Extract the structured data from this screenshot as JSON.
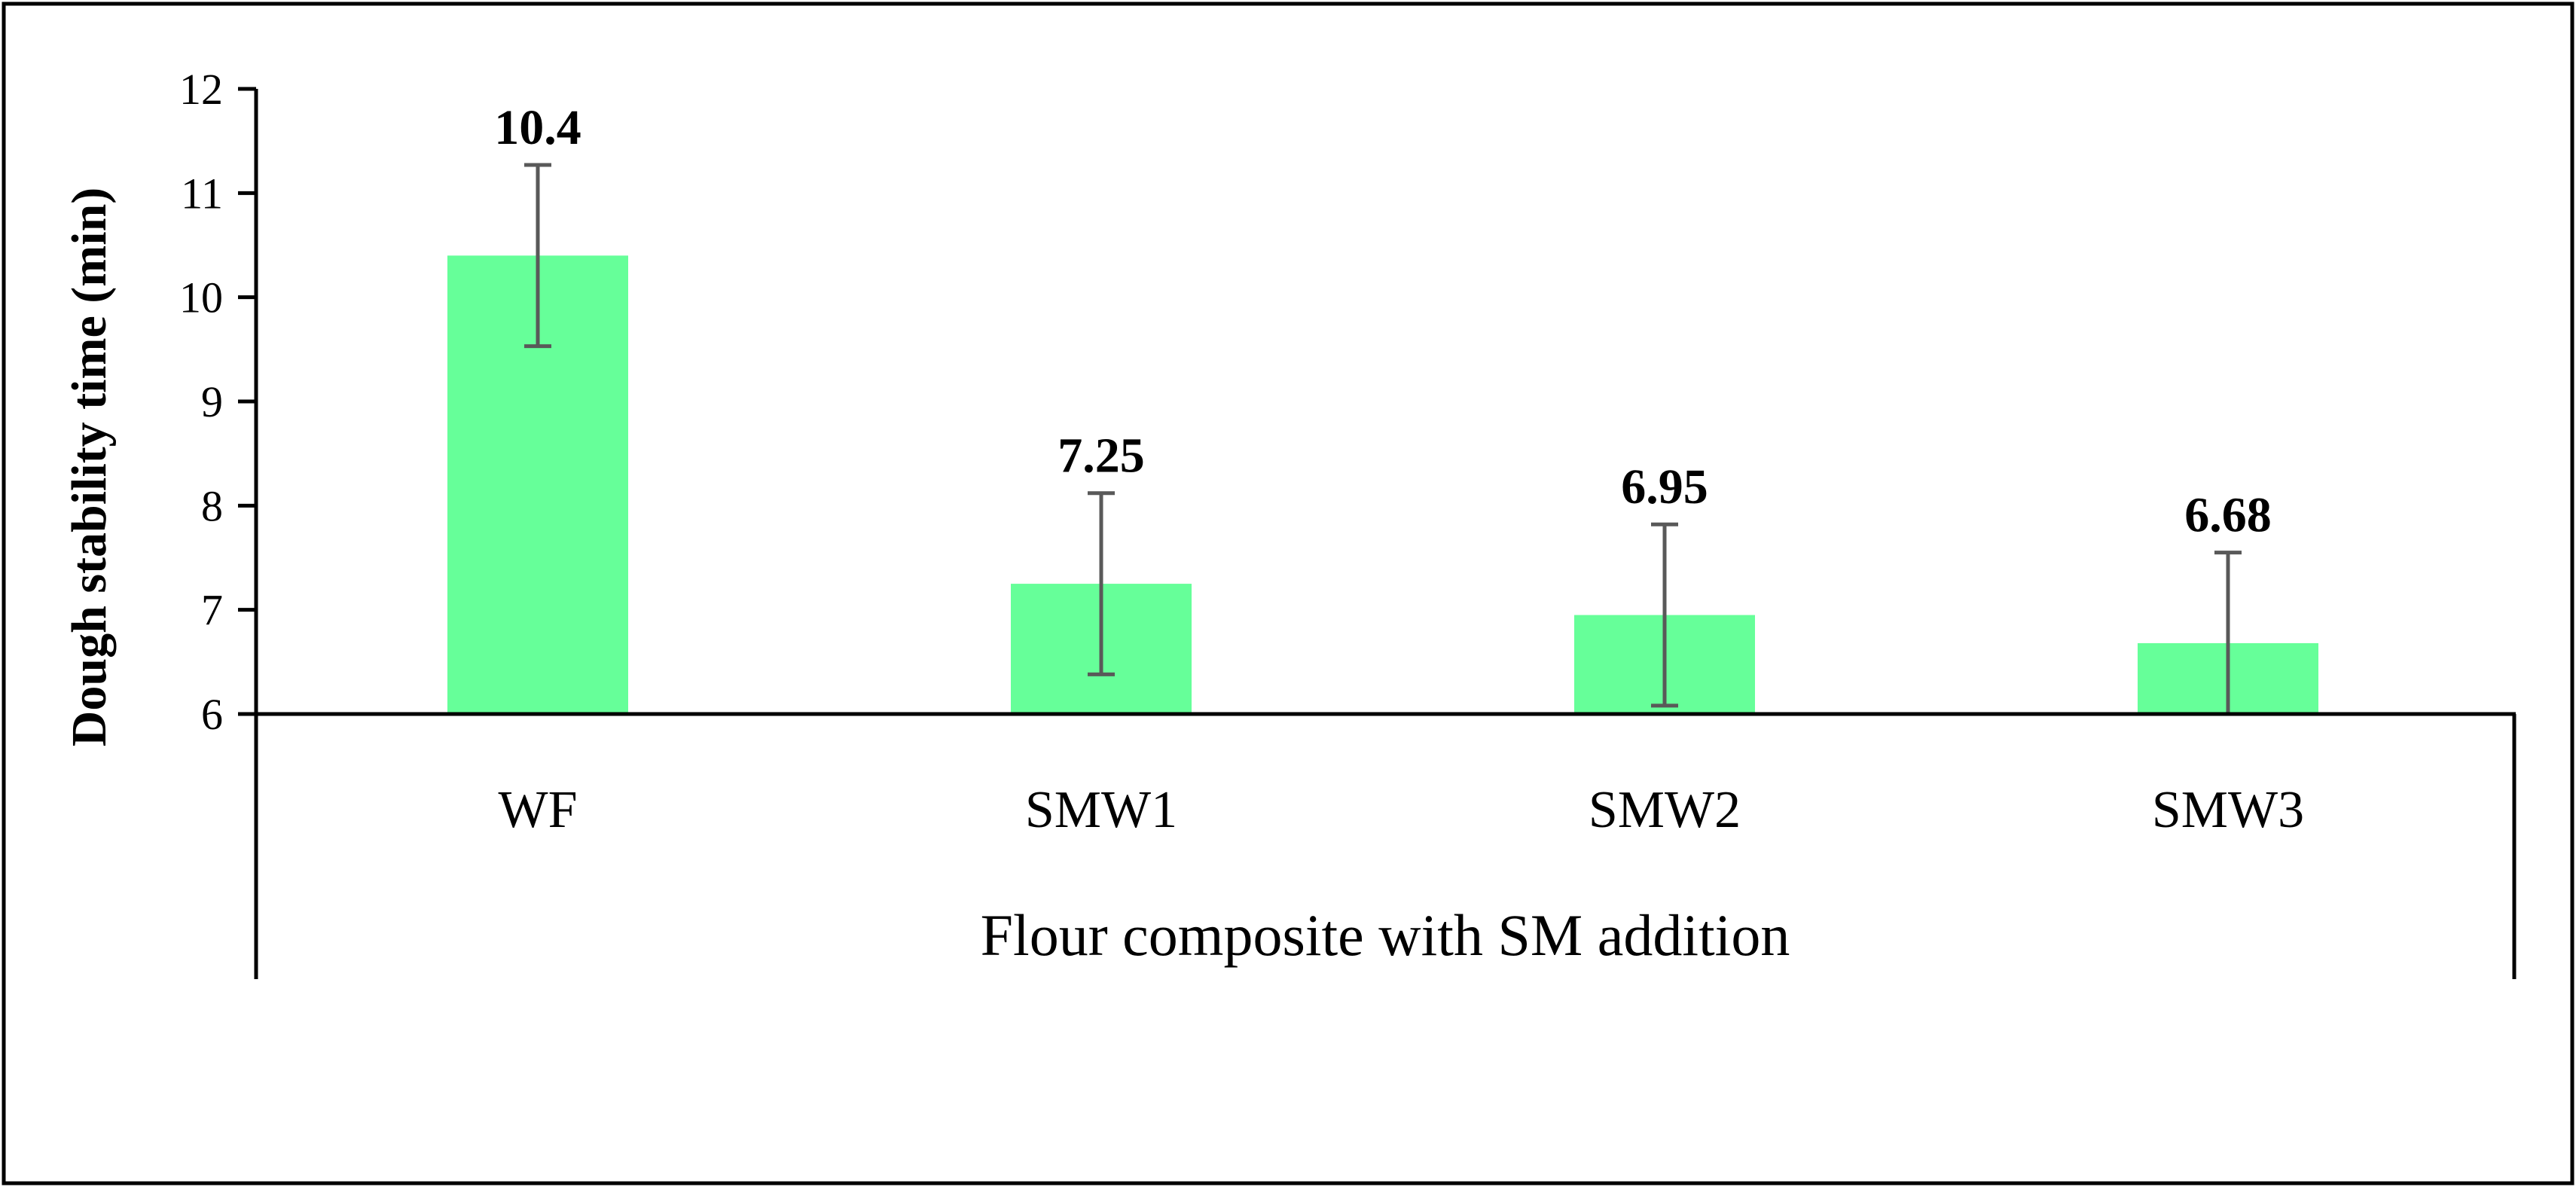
{
  "chart_data": {
    "type": "bar",
    "categories": [
      "WF",
      "SMW1",
      "SMW2",
      "SMW3"
    ],
    "values": [
      10.4,
      7.25,
      6.95,
      6.68
    ],
    "data_labels": [
      "10.4",
      "7.25",
      "6.95",
      "6.68"
    ],
    "error": [
      0.87,
      0.87,
      0.87,
      0.87
    ],
    "title": "",
    "xlabel": "Flour composite with SM addition",
    "ylabel": "Dough stability time (min)",
    "ylim": [
      6,
      12
    ],
    "yticks": [
      6,
      7,
      8,
      9,
      10,
      11,
      12
    ],
    "grid": false,
    "legend": "none",
    "colors": {
      "bar": "#66ff99",
      "error_bar": "#595959",
      "axis": "#000000",
      "frame": "#000000"
    }
  }
}
